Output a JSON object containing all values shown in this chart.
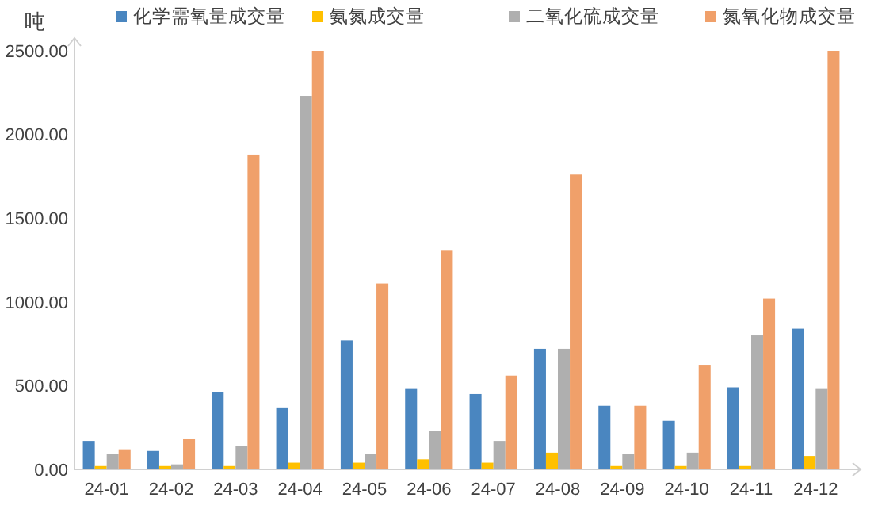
{
  "chart_data": {
    "type": "bar",
    "ylabel": "吨",
    "categories": [
      "24-01",
      "24-02",
      "24-03",
      "24-04",
      "24-05",
      "24-06",
      "24-07",
      "24-08",
      "24-09",
      "24-10",
      "24-11",
      "24-12"
    ],
    "series": [
      {
        "name": "化学需氧量成交量",
        "color": "#4a86c0",
        "values": [
          170,
          110,
          460,
          370,
          770,
          480,
          450,
          720,
          380,
          290,
          490,
          840
        ]
      },
      {
        "name": "氨氮成交量",
        "color": "#ffc000",
        "values": [
          20,
          20,
          20,
          40,
          40,
          60,
          40,
          100,
          20,
          20,
          20,
          80
        ]
      },
      {
        "name": "二氧化硫成交量",
        "color": "#afafaf",
        "values": [
          90,
          30,
          140,
          2230,
          90,
          230,
          170,
          720,
          90,
          100,
          800,
          480
        ]
      },
      {
        "name": "氮氧化物成交量",
        "color": "#f0a06a",
        "values": [
          120,
          180,
          1880,
          2500,
          1110,
          1310,
          560,
          1760,
          380,
          620,
          1020,
          2500
        ]
      }
    ],
    "ylim": [
      0,
      2500
    ],
    "yticks": [
      {
        "value": 0,
        "label": "0.00"
      },
      {
        "value": 500,
        "label": "500.00"
      },
      {
        "value": 1000,
        "label": "1000.00"
      },
      {
        "value": 1500,
        "label": "1500.00"
      },
      {
        "value": 2000,
        "label": "2000.00"
      },
      {
        "value": 2500,
        "label": "2500.00"
      }
    ],
    "grid": false,
    "legend": "top"
  }
}
